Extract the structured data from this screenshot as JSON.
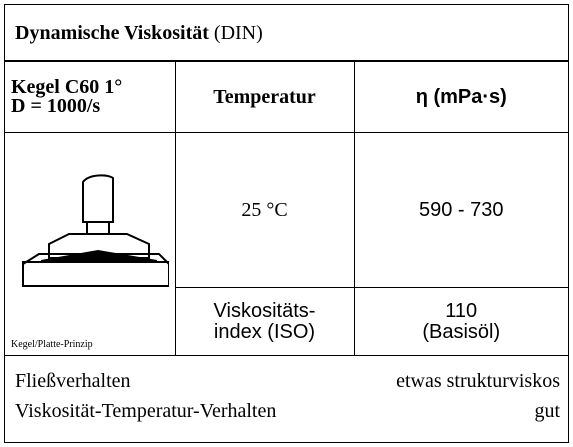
{
  "title": {
    "main": "Dynamische Viskosität",
    "suffix": "(DIN)"
  },
  "table": {
    "header": [
      "Kegel C60 1°\nD = 1000/s",
      "Temperatur",
      "η (mPa·s)"
    ],
    "method_label": "Kegel/Platte-Prinzip",
    "rows": [
      [
        "25 °C",
        "590 - 730"
      ],
      [
        "Viskositäts-\nindex (ISO)",
        "110\n(Basisöl)"
      ]
    ]
  },
  "footer": [
    [
      "Fließverhalten",
      "etwas strukturviskos"
    ],
    [
      "Viskosität-Temperatur-Verhalten",
      "gut"
    ]
  ]
}
